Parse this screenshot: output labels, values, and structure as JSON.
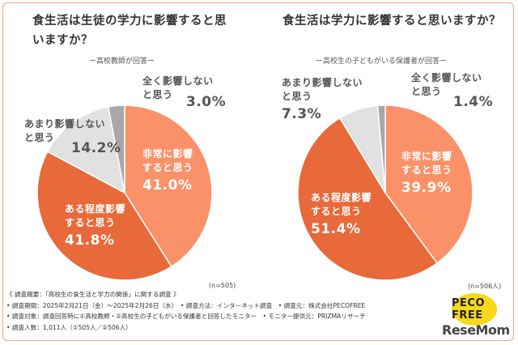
{
  "colors": {
    "very": "#fa9169",
    "some": "#e8693a",
    "little": "#e1e1e1",
    "none": "#a8a8a8",
    "frame": "#f0a57e"
  },
  "chart_data": [
    {
      "type": "pie",
      "title": "食生活は生徒の学力に影響すると思いますか？",
      "subtitle": "ー高校教師が回答ー",
      "n": "(n=505)",
      "slices": [
        {
          "name_lines": [
            "非常に影響",
            "すると思う"
          ],
          "value": 41.0,
          "value_label": "41.0%",
          "color_key": "very"
        },
        {
          "name_lines": [
            "ある程度影響",
            "すると思う"
          ],
          "value": 41.8,
          "value_label": "41.8%",
          "color_key": "some"
        },
        {
          "name_lines": [
            "あまり影響しない",
            "と思う"
          ],
          "value": 14.2,
          "value_label": "14.2%",
          "color_key": "little"
        },
        {
          "name_lines": [
            "全く影響しない",
            "と思う"
          ],
          "value": 3.0,
          "value_label": "3.0%",
          "color_key": "none"
        }
      ]
    },
    {
      "type": "pie",
      "title": "食生活は学力に影響すると思いますか？",
      "subtitle": "ー高校生の子どもがいる保護者が回答ー",
      "n": "(n=506人)",
      "slices": [
        {
          "name_lines": [
            "非常に影響",
            "すると思う"
          ],
          "value": 39.9,
          "value_label": "39.9%",
          "color_key": "very"
        },
        {
          "name_lines": [
            "ある程度影響",
            "すると思う"
          ],
          "value": 51.4,
          "value_label": "51.4%",
          "color_key": "some"
        },
        {
          "name_lines": [
            "あまり影響しない",
            "と思う"
          ],
          "value": 7.3,
          "value_label": "7.3%",
          "color_key": "little"
        },
        {
          "name_lines": [
            "全く影響しない",
            "と思う"
          ],
          "value": 1.4,
          "value_label": "1.4%",
          "color_key": "none"
        }
      ]
    }
  ],
  "notes": [
    "《 調査概要：「高校生の食生活と学力の関係」に関する調査 》",
    "• 調査期間：2025年2月21日（金）〜2025年2月26日（水）　• 調査方法：インターネット調査　• 調査元：株式会社PECOFREE",
    "• 調査対象：調査回答時に①高校教師・②高校生の子どもがいる保護者と回答したモニター　• モニター提供元：PRIZMAリサーチ",
    "• 調査人数：1,011人（①505人／②506人）"
  ],
  "logo": {
    "brand": "PECO FREE",
    "watermark": "ReseMom"
  }
}
